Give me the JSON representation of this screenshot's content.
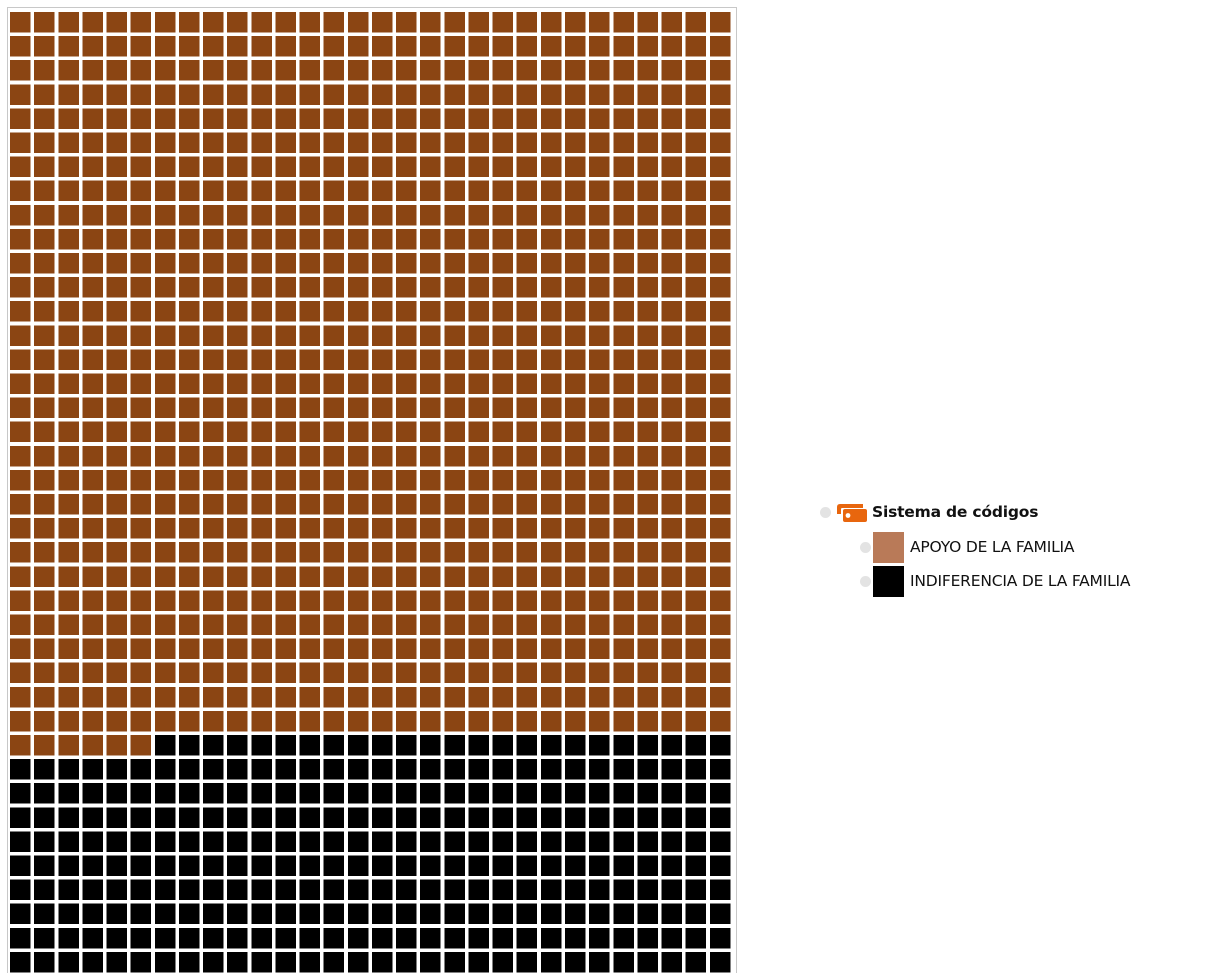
{
  "chart_data": {
    "type": "waffle",
    "categories": [
      "APOYO DE LA FAMILIA",
      "INDIFERENCIA DE LA FAMILIA"
    ],
    "series": [
      {
        "name": "APOYO DE LA FAMILIA",
        "count": 906,
        "color": "#8b4513"
      },
      {
        "name": "INDIFERENCIA DE LA FAMILIA",
        "count": 360,
        "color": "#000000"
      }
    ],
    "grid": {
      "columns": 30,
      "visible_rows": 40
    },
    "fill_order": "row-major, top-left first"
  },
  "legend": {
    "root": {
      "label": "Sistema de códigos",
      "icon": "code-system-tag-icon",
      "icon_color": "#e8660e"
    },
    "items": [
      {
        "label": "APOYO DE LA FAMILIA",
        "swatch_color": "#b97a58"
      },
      {
        "label": "INDIFERENCIA DE LA FAMILIA",
        "swatch_color": "#000000"
      }
    ]
  }
}
